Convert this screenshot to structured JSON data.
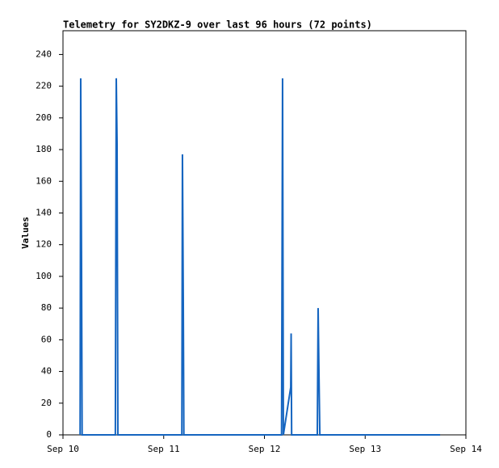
{
  "chart_data": {
    "type": "line",
    "title": "Telemetry for SY2DKZ-9 over last 96 hours (72 points)",
    "ylabel": "Values",
    "x": [
      10.17,
      10.176,
      10.184,
      10.19,
      10.52,
      10.529,
      10.537,
      10.545,
      11.18,
      11.186,
      11.194,
      11.2,
      12.17,
      12.18,
      12.188,
      12.261,
      12.265,
      12.27,
      12.525,
      12.533,
      12.541,
      12.55,
      13.744
    ],
    "values": [
      0,
      225,
      112,
      0,
      0,
      225,
      184,
      0,
      0,
      177,
      88,
      0,
      0,
      225,
      0,
      30,
      64,
      0,
      0,
      80,
      40,
      0,
      0
    ],
    "color": "#1565c0",
    "xlim": [
      10,
      14
    ],
    "xticks": [
      {
        "value": 10,
        "label": "Sep 10"
      },
      {
        "value": 11,
        "label": "Sep 11"
      },
      {
        "value": 12,
        "label": "Sep 12"
      },
      {
        "value": 13,
        "label": "Sep 13"
      },
      {
        "value": 14,
        "label": "Sep 14"
      }
    ],
    "ylim": [
      0,
      255
    ],
    "yticks": [
      0,
      20,
      40,
      60,
      80,
      100,
      120,
      140,
      160,
      180,
      200,
      220,
      240
    ],
    "grid": false
  }
}
